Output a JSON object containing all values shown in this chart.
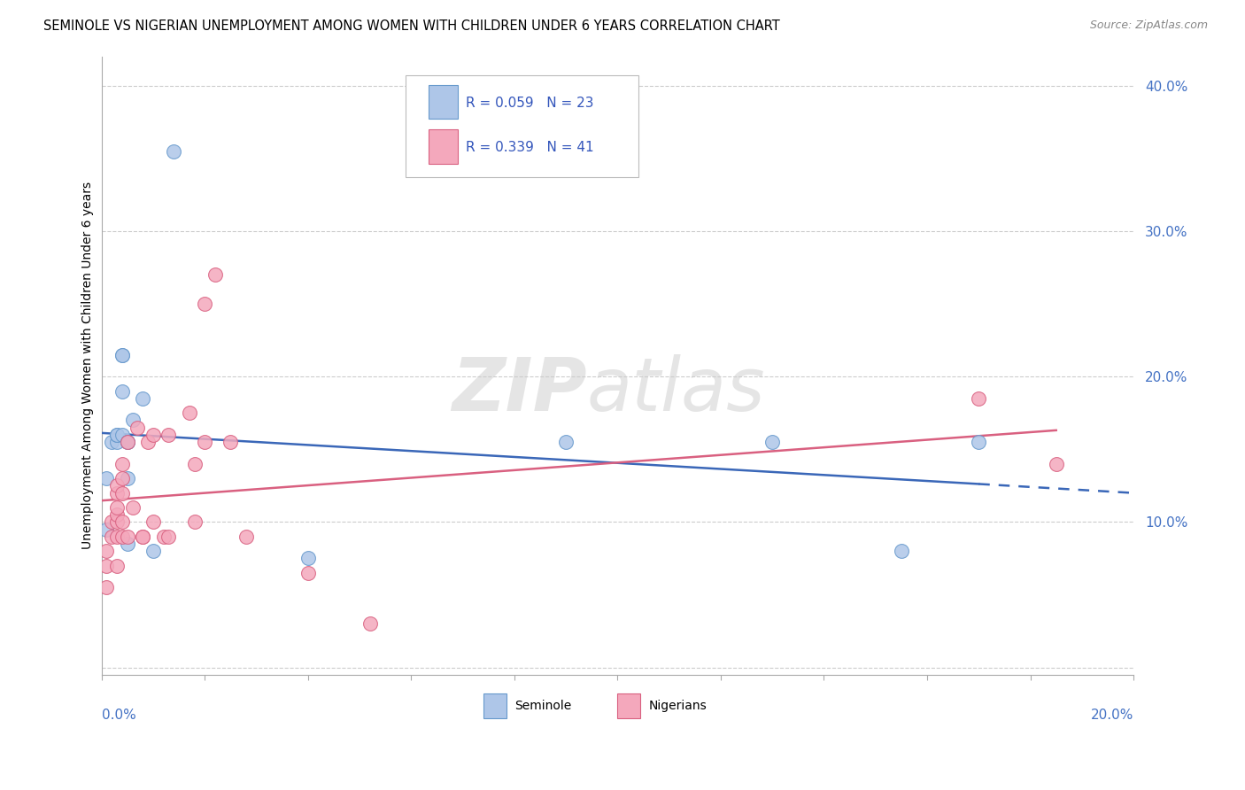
{
  "title": "SEMINOLE VS NIGERIAN UNEMPLOYMENT AMONG WOMEN WITH CHILDREN UNDER 6 YEARS CORRELATION CHART",
  "source": "Source: ZipAtlas.com",
  "ylabel": "Unemployment Among Women with Children Under 6 years",
  "xlim": [
    0.0,
    0.2
  ],
  "ylim": [
    -0.005,
    0.42
  ],
  "yticks": [
    0.0,
    0.1,
    0.2,
    0.3,
    0.4
  ],
  "ytick_labels": [
    "",
    "10.0%",
    "20.0%",
    "30.0%",
    "40.0%"
  ],
  "xticks": [
    0.0,
    0.02,
    0.04,
    0.06,
    0.08,
    0.1,
    0.12,
    0.14,
    0.16,
    0.18,
    0.2
  ],
  "seminole_color": "#aec6e8",
  "nigerian_color": "#f4a8bc",
  "seminole_edge": "#6699cc",
  "nigerian_edge": "#d96080",
  "seminole_line_color": "#3a67b8",
  "nigerian_line_color": "#d96080",
  "seminole_R": 0.059,
  "seminole_N": 23,
  "nigerian_R": 0.339,
  "nigerian_N": 41,
  "seminole_x": [
    0.001,
    0.001,
    0.002,
    0.003,
    0.003,
    0.003,
    0.004,
    0.004,
    0.004,
    0.004,
    0.005,
    0.005,
    0.005,
    0.005,
    0.006,
    0.008,
    0.01,
    0.014,
    0.04,
    0.09,
    0.13,
    0.155,
    0.17
  ],
  "seminole_y": [
    0.095,
    0.13,
    0.155,
    0.155,
    0.16,
    0.16,
    0.16,
    0.19,
    0.215,
    0.215,
    0.085,
    0.13,
    0.155,
    0.155,
    0.17,
    0.185,
    0.08,
    0.355,
    0.075,
    0.155,
    0.155,
    0.08,
    0.155
  ],
  "nigerian_x": [
    0.001,
    0.001,
    0.001,
    0.002,
    0.002,
    0.003,
    0.003,
    0.003,
    0.003,
    0.003,
    0.003,
    0.003,
    0.004,
    0.004,
    0.004,
    0.004,
    0.004,
    0.005,
    0.005,
    0.006,
    0.007,
    0.008,
    0.008,
    0.009,
    0.01,
    0.01,
    0.012,
    0.013,
    0.013,
    0.017,
    0.018,
    0.018,
    0.02,
    0.02,
    0.022,
    0.025,
    0.028,
    0.04,
    0.052,
    0.17,
    0.185
  ],
  "nigerian_y": [
    0.055,
    0.07,
    0.08,
    0.09,
    0.1,
    0.07,
    0.09,
    0.1,
    0.105,
    0.11,
    0.12,
    0.125,
    0.09,
    0.1,
    0.12,
    0.13,
    0.14,
    0.09,
    0.155,
    0.11,
    0.165,
    0.09,
    0.09,
    0.155,
    0.1,
    0.16,
    0.09,
    0.09,
    0.16,
    0.175,
    0.1,
    0.14,
    0.155,
    0.25,
    0.27,
    0.155,
    0.09,
    0.065,
    0.03,
    0.185,
    0.14
  ]
}
